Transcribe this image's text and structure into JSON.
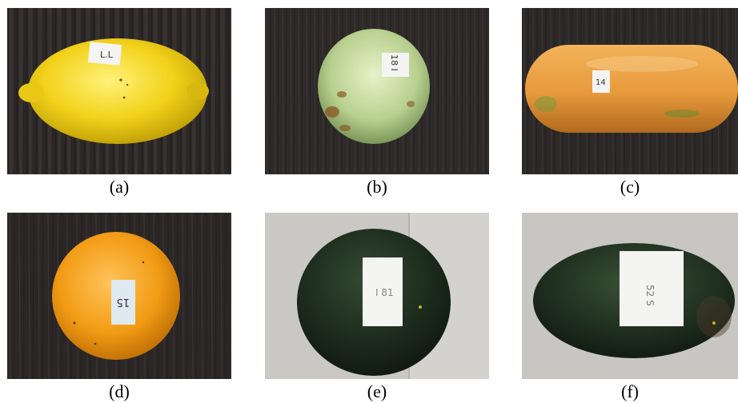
{
  "figure": {
    "panels": [
      {
        "id": "a",
        "caption": "(a)",
        "label_text": "L.L",
        "subject": "lemon-photo"
      },
      {
        "id": "b",
        "caption": "(b)",
        "label_text": "18 I",
        "subject": "guava-photo"
      },
      {
        "id": "c",
        "caption": "(c)",
        "label_text": "14",
        "subject": "papaya-photo"
      },
      {
        "id": "d",
        "caption": "(d)",
        "label_text": "15",
        "subject": "orange-photo"
      },
      {
        "id": "e",
        "caption": "(e)",
        "label_text": "I 81",
        "subject": "watermelon-photo"
      },
      {
        "id": "f",
        "caption": "(f)",
        "label_text": "52 S",
        "subject": "watermelon-photo-2"
      }
    ],
    "colors": {
      "dark_wood": "#2b2827",
      "light_floor": "#c9c8c5",
      "lemon": "#f2d21a",
      "guava": "#b8d08f",
      "papaya": "#e79a3c",
      "orange": "#f29b14",
      "watermelon": "#1c2b1c",
      "label_paper": "#f4f4f2"
    }
  }
}
